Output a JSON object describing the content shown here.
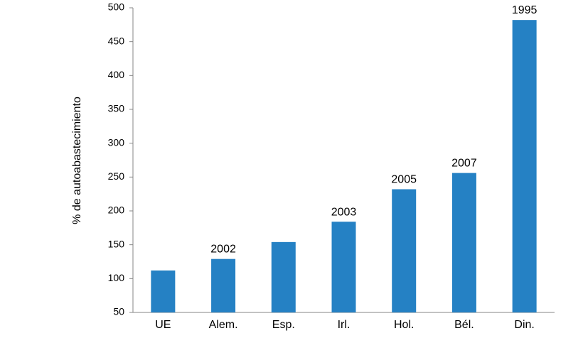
{
  "chart_data": {
    "type": "bar",
    "title": "",
    "xlabel": "",
    "ylabel": "% de autoabastecimiento",
    "ylim": [
      50,
      500
    ],
    "yticks": [
      50,
      100,
      150,
      200,
      250,
      300,
      350,
      400,
      450,
      500
    ],
    "grid": false,
    "legend": "none",
    "bar_color": "#2581c4",
    "categories": [
      "UE",
      "Alem.",
      "Esp.",
      "Irl.",
      "Hol.",
      "Bél.",
      "Din."
    ],
    "values": [
      112,
      129,
      154,
      184,
      232,
      256,
      482
    ],
    "data_labels": [
      "",
      "2002",
      "",
      "2003",
      "2005",
      "2007",
      "1995"
    ]
  }
}
